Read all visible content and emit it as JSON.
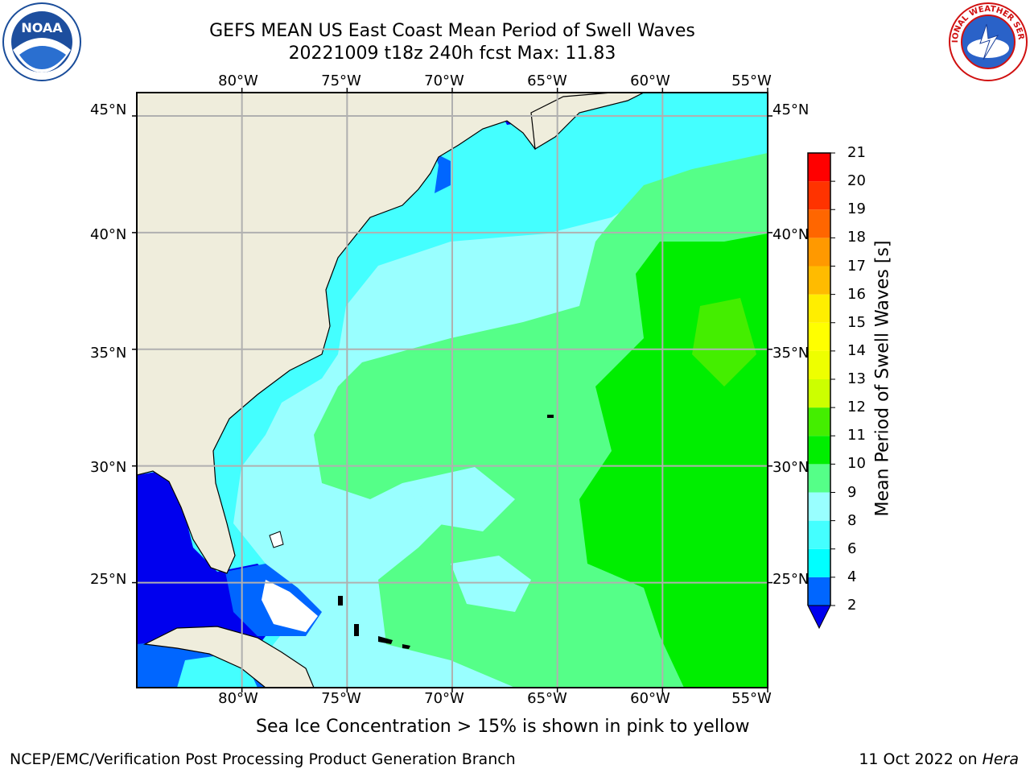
{
  "title": {
    "line1": "GEFS MEAN US East Coast Mean Period of Swell Waves",
    "line2": "20221009 t18z 240h fcst   Max: 11.83"
  },
  "logos": {
    "left": {
      "icon": "noaa-logo",
      "text": "NOAA"
    },
    "right": {
      "icon": "national-weather-service-logo",
      "text": "NATIONAL WEATHER SERVICE"
    }
  },
  "map": {
    "lon_labels": [
      "80°W",
      "75°W",
      "70°W",
      "65°W",
      "60°W",
      "55°W"
    ],
    "lat_labels": [
      "45°N",
      "40°N",
      "35°N",
      "30°N",
      "25°N"
    ],
    "lon_range": [
      -85,
      -55
    ],
    "lat_range": [
      20.5,
      46
    ],
    "land_color": "#efeddc",
    "grid_color": "#b0b0b0",
    "field_colors": {
      "cyan": "#44ffff",
      "light_cyan": "#99ffff",
      "light_green": "#55ff88",
      "green": "#00ee00",
      "blue": "#0044ee",
      "dark_blue": "#0000ee"
    }
  },
  "colorbar": {
    "label": "Mean Period of Swell Waves [s]",
    "ticks": [
      "2",
      "4",
      "6",
      "8",
      "9",
      "10",
      "11",
      "12",
      "13",
      "14",
      "15",
      "16",
      "17",
      "18",
      "19",
      "20",
      "21"
    ],
    "colors": [
      "#0066ff",
      "#00ffff",
      "#44ffff",
      "#99ffff",
      "#55ff88",
      "#00ee00",
      "#44ee00",
      "#ccff00",
      "#eeff00",
      "#ffff00",
      "#ffee00",
      "#ffbb00",
      "#ff9900",
      "#ff6600",
      "#ff3300",
      "#ff0000"
    ],
    "under_color": "#0000ee"
  },
  "ice_note": "Sea Ice Concentration > 15% is shown in pink to yellow",
  "footer": {
    "left": "NCEP/EMC/Verification Post Processing Product Generation Branch",
    "right_date": "11 Oct 2022 on ",
    "right_machine": "Hera"
  }
}
